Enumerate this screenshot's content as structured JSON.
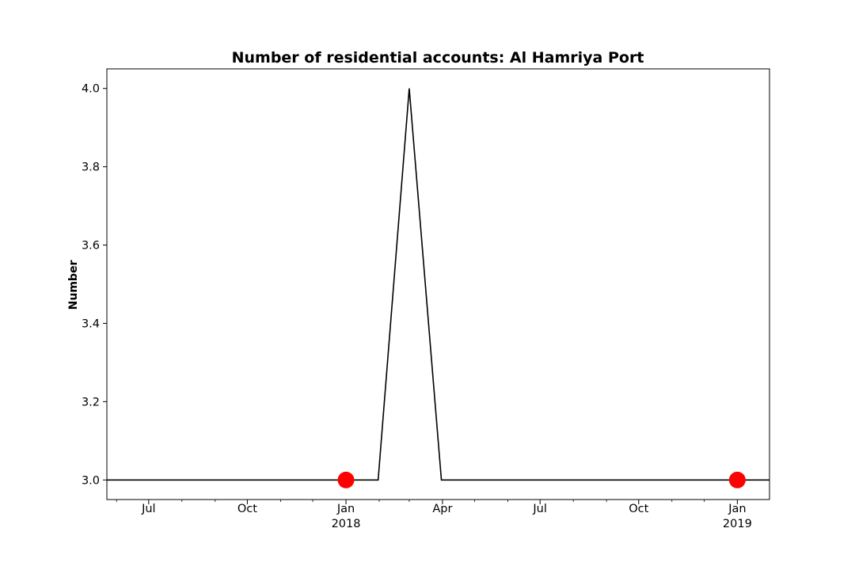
{
  "chart_data": {
    "type": "line",
    "title": "Number of residential accounts: Al Hamriya Port",
    "xlabel": "",
    "ylabel": "Number",
    "x_type": "date",
    "xlim": [
      "2017-05-23",
      "2019-01-31"
    ],
    "ylim": [
      2.95,
      4.05
    ],
    "y_ticks": [
      {
        "value": 3.0,
        "label": "3.0"
      },
      {
        "value": 3.2,
        "label": "3.2"
      },
      {
        "value": 3.4,
        "label": "3.4"
      },
      {
        "value": 3.6,
        "label": "3.6"
      },
      {
        "value": 3.8,
        "label": "3.8"
      },
      {
        "value": 4.0,
        "label": "4.0"
      }
    ],
    "x_ticks": [
      {
        "date": "2017-07-01",
        "label": "Jul",
        "sublabel": ""
      },
      {
        "date": "2017-10-01",
        "label": "Oct",
        "sublabel": ""
      },
      {
        "date": "2018-01-01",
        "label": "Jan",
        "sublabel": "2018"
      },
      {
        "date": "2018-04-01",
        "label": "Apr",
        "sublabel": ""
      },
      {
        "date": "2018-07-01",
        "label": "Jul",
        "sublabel": ""
      },
      {
        "date": "2018-10-01",
        "label": "Oct",
        "sublabel": ""
      },
      {
        "date": "2019-01-01",
        "label": "Jan",
        "sublabel": "2019"
      }
    ],
    "x_minor_ticks": [
      "2017-06-01",
      "2017-08-01",
      "2017-09-01",
      "2017-11-01",
      "2017-12-01",
      "2018-02-01",
      "2018-03-01",
      "2018-05-01",
      "2018-06-01",
      "2018-08-01",
      "2018-09-01",
      "2018-11-01",
      "2018-12-01"
    ],
    "series": [
      {
        "name": "",
        "color": "#000000",
        "x": [
          "2017-05-23",
          "2018-01-31",
          "2018-03-01",
          "2018-03-31",
          "2019-01-31"
        ],
        "y": [
          3,
          3,
          4,
          3,
          3
        ]
      }
    ],
    "markers": {
      "color": "#ff0000",
      "x": [
        "2018-01-01",
        "2019-01-01"
      ],
      "y": [
        3,
        3
      ]
    },
    "grid": false,
    "legend": "none"
  }
}
